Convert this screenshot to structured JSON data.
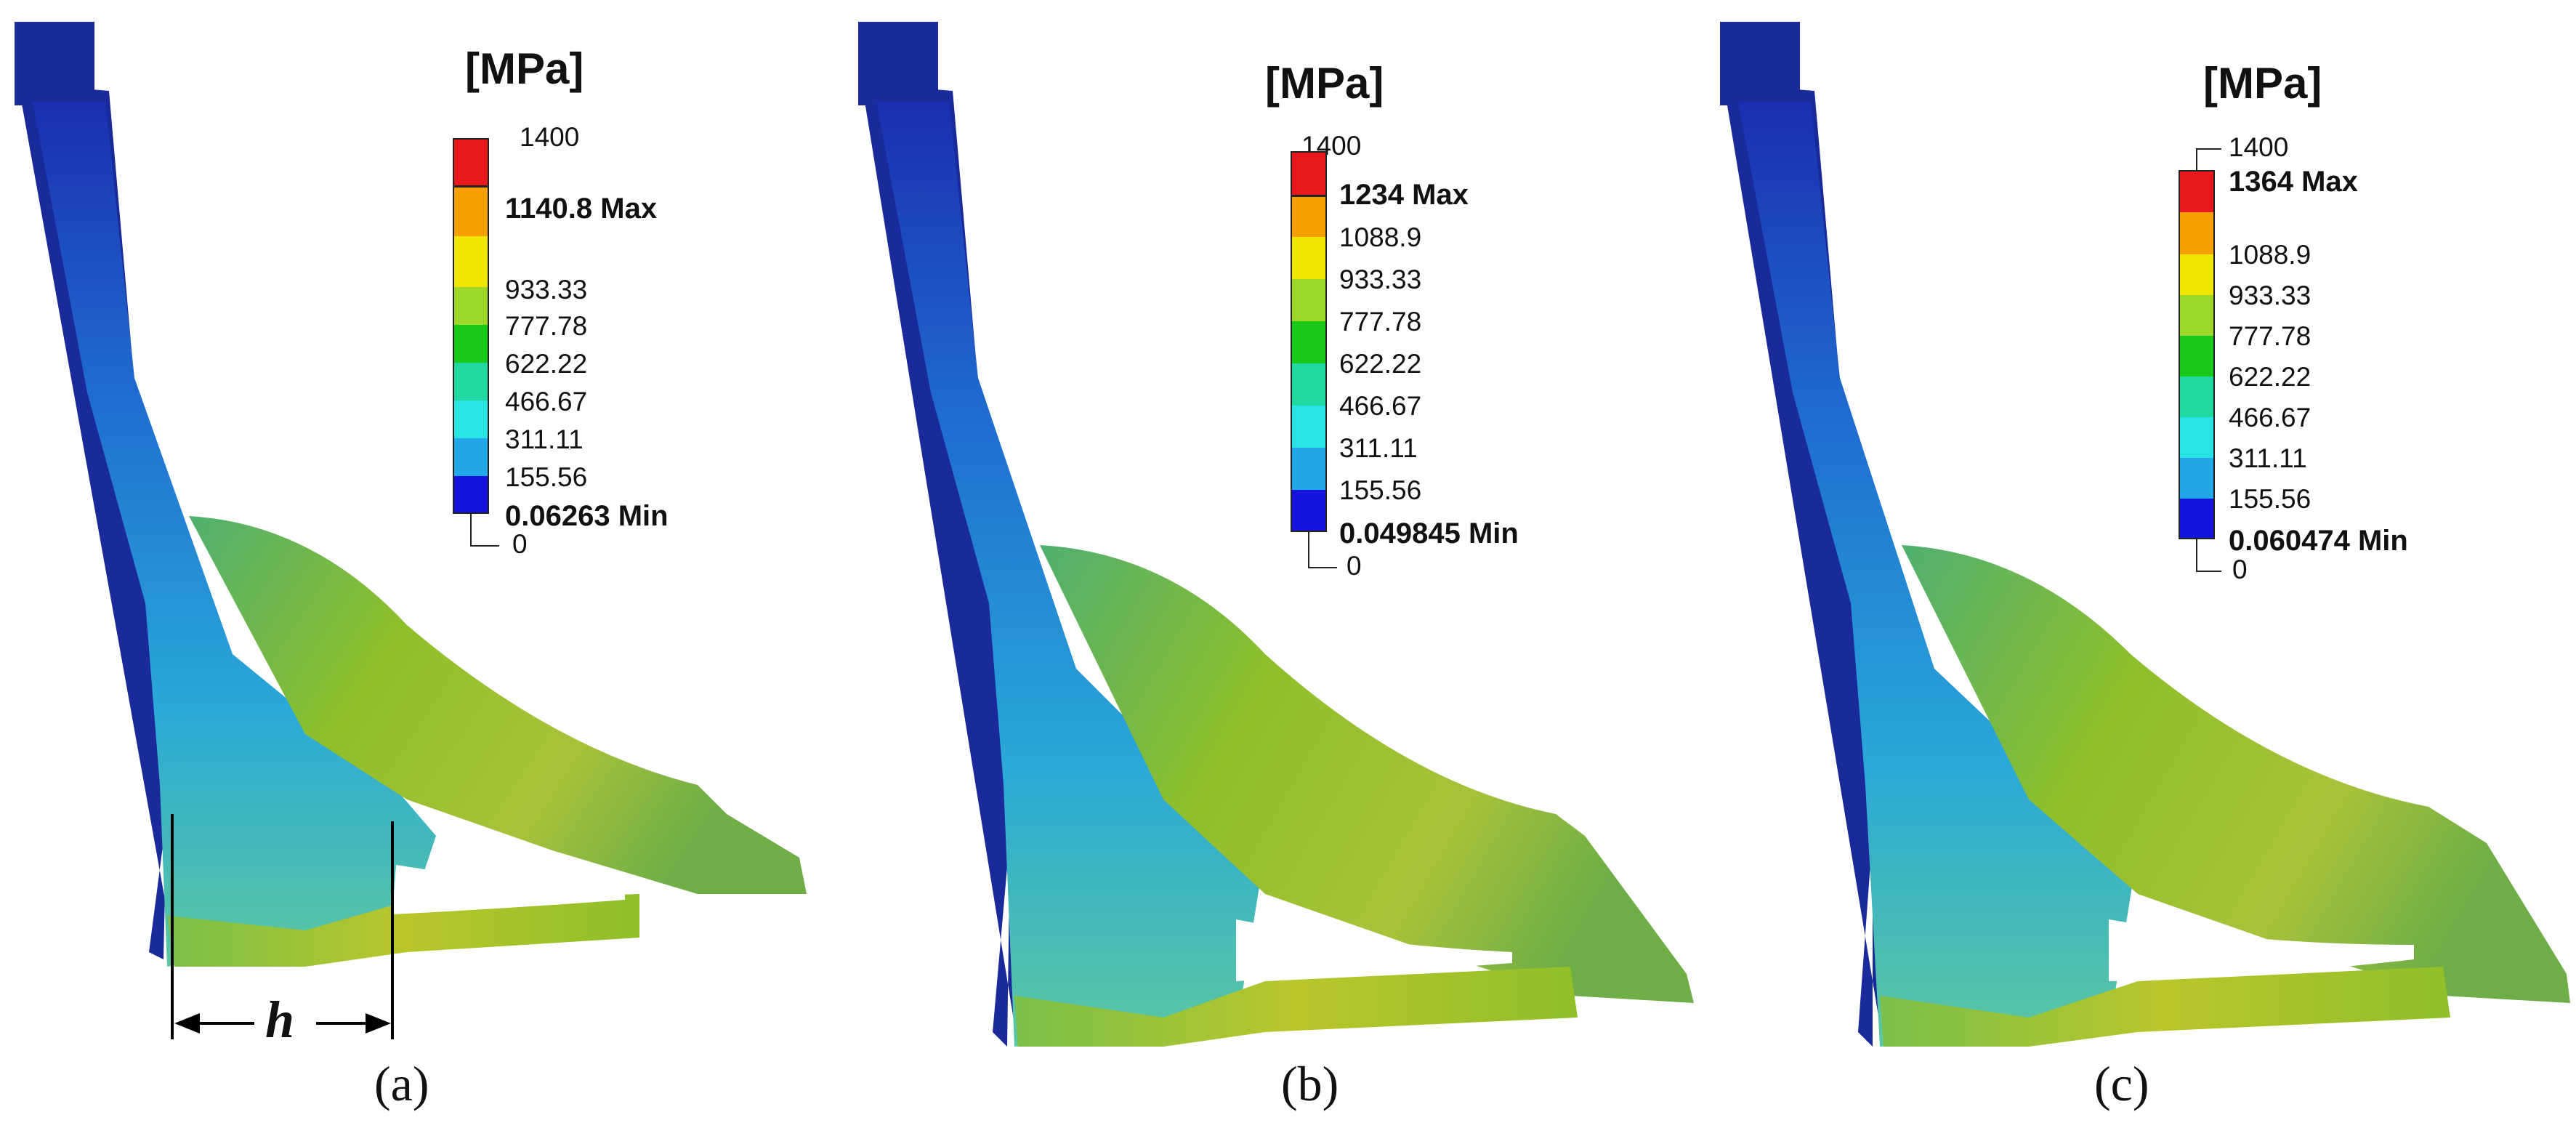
{
  "panels": [
    {
      "id": "a",
      "caption": "(a)",
      "unit": "[MPa]",
      "legend": {
        "top": "1400",
        "max": "1140.8 Max",
        "ticks": [
          "933.33",
          "777.78",
          "622.22",
          "466.67",
          "311.11",
          "155.56"
        ],
        "min": "0.06263 Min",
        "bottom": "0"
      },
      "dimension_label": "h"
    },
    {
      "id": "b",
      "caption": "(b)",
      "unit": "[MPa]",
      "legend": {
        "top": "1400",
        "max": "1234 Max",
        "ticks": [
          "1088.9",
          "933.33",
          "777.78",
          "622.22",
          "466.67",
          "311.11",
          "155.56"
        ],
        "min": "0.049845 Min",
        "bottom": "0"
      }
    },
    {
      "id": "c",
      "caption": "(c)",
      "unit": "[MPa]",
      "legend": {
        "top": "1400",
        "max": "1364 Max",
        "ticks": [
          "1088.9",
          "933.33",
          "777.78",
          "622.22",
          "466.67",
          "311.11",
          "155.56"
        ],
        "min": "0.060474 Min",
        "bottom": "0"
      }
    }
  ],
  "colormap": [
    "#e8181c",
    "#f5a000",
    "#f0e600",
    "#9cd72a",
    "#18c818",
    "#20d8a0",
    "#28e4e4",
    "#22a8e8",
    "#1414dc"
  ]
}
